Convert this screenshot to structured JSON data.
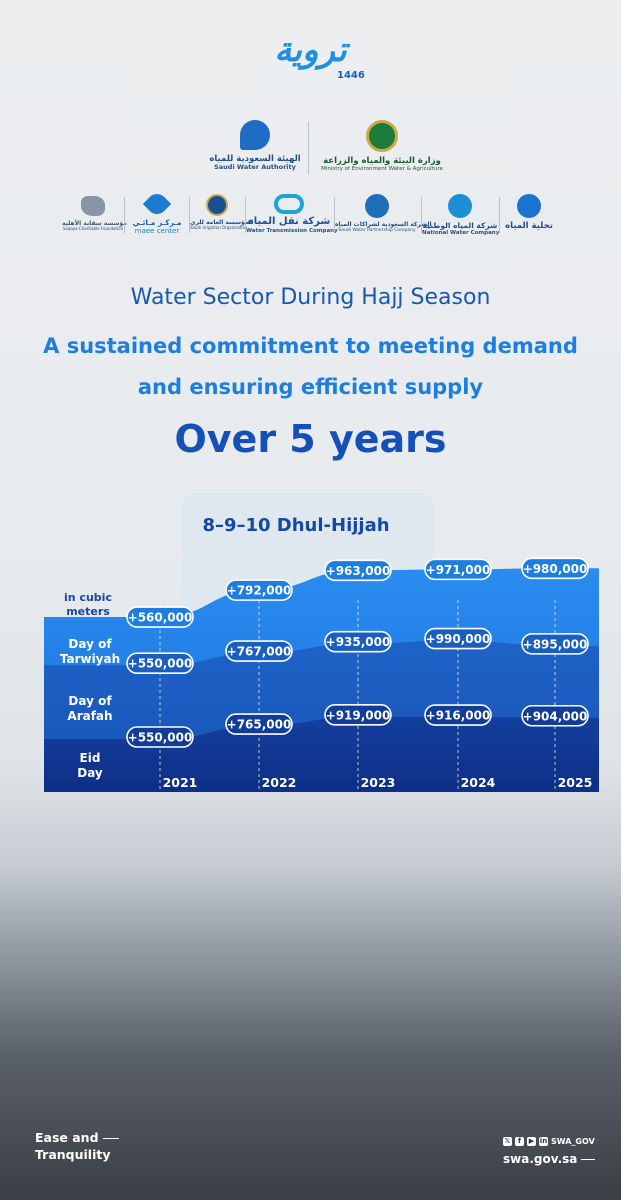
{
  "header": {
    "logo_text": "تروية",
    "logo_year": "1446"
  },
  "partners_top": [
    {
      "ar": "الهيئة السعودية للمياه",
      "en": "Saudi Water Authority",
      "icon": "saudi-water-authority-icon",
      "color": "#1f6cc4"
    },
    {
      "ar": "وزارة البيئة والمياه والزراعة",
      "en": "Ministry of Environment Water & Agriculture",
      "icon": "palm-emblem-icon",
      "color": "#1c7a3a"
    }
  ],
  "partners_row": [
    {
      "ar": "مؤسسة سقاية الأهلية",
      "en": "Saqaya Charitable Foundation",
      "icon": "saudi-map-icon",
      "color": "#5a6c80"
    },
    {
      "ar": "مـركـز مـائـي",
      "en": "maee center",
      "icon": "maee-flower-icon",
      "color": "#1e7cd0"
    },
    {
      "ar": "المؤسسة العامة للري",
      "en": "Saudi Irrigation Organization",
      "icon": "irrigation-emblem-icon",
      "color": "#1b4f8f"
    },
    {
      "ar": "شركة نقل المياه",
      "en": "Water Transmission Company",
      "icon": "transmission-rings-icon",
      "color": "#1fa3d6"
    },
    {
      "ar": "الشركة السعودية لشراكات المياه",
      "en": "Saudi Water Partnership Company",
      "icon": "wave-emblem-icon",
      "color": "#1d6fb8"
    },
    {
      "ar": "شركة المياه الوطنية",
      "en": "National Water Company",
      "icon": "water-drop-icon",
      "color": "#1c8fd6"
    },
    {
      "ar": "تحلية المياه",
      "en": "",
      "icon": "desalination-icon",
      "color": "#1a73d0"
    }
  ],
  "headings": {
    "title": "Water Sector During Hajj Season",
    "subtitle_line1": "A sustained commitment to meeting demand",
    "subtitle_line2": "and ensuring efficient supply",
    "period": "Over 5 years"
  },
  "chart_data": {
    "type": "area",
    "title": "8–9–10 Dhul-Hijjah",
    "unit_label": "in cubic meters",
    "categories": [
      "2021",
      "2022",
      "2023",
      "2024",
      "2025"
    ],
    "ylim": [
      0,
      1100000
    ],
    "series": [
      {
        "name": "Day of Tarwiyah",
        "values": [
          560000,
          792000,
          963000,
          971000,
          980000
        ],
        "labels": [
          "+560,000",
          "+792,000",
          "+963,000",
          "+971,000",
          "+980,000"
        ],
        "color": "#1e7ee0"
      },
      {
        "name": "Day of Arafah",
        "values": [
          550000,
          767000,
          935000,
          990000,
          895000
        ],
        "labels": [
          "+550,000",
          "+767,000",
          "+935,000",
          "+990,000",
          "+895,000"
        ],
        "color": "#1a5fbf"
      },
      {
        "name": "Eid Day",
        "values": [
          550000,
          765000,
          919000,
          916000,
          904000
        ],
        "labels": [
          "+550,000",
          "+765,000",
          "+919,000",
          "+916,000",
          "+904,000"
        ],
        "color": "#0f3d98"
      }
    ],
    "legend_placement": "left"
  },
  "footer": {
    "tagline_line1": "Ease and",
    "tagline_line2": "Tranquility",
    "social_handle": "SWA_GOV",
    "social_icons": [
      "x-icon",
      "facebook-icon",
      "youtube-icon",
      "linkedin-icon"
    ],
    "website": "swa.gov.sa"
  }
}
